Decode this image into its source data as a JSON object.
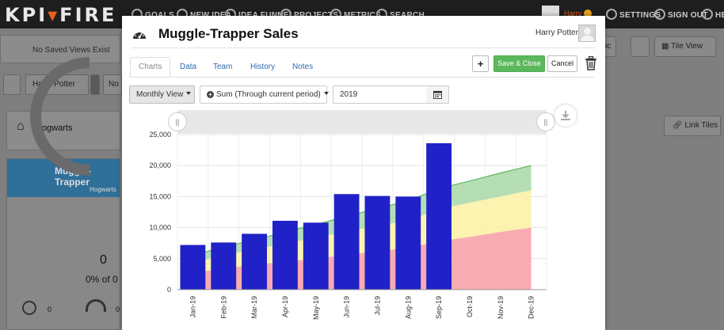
{
  "topnav": {
    "logo_a": "KPI",
    "logo_b": "FIRE",
    "items": [
      "GOALS",
      "NEW IDEA",
      "IDEA FUNNEL",
      "PROJECTS",
      "METRICS",
      "SEARCH"
    ],
    "user_name": "Harry",
    "right_items": [
      "SETTINGS",
      "SIGN OUT",
      "HEL"
    ]
  },
  "background": {
    "saved_views": "No Saved Views Exist",
    "filter_user": "Harry Potter",
    "filter_no": "No",
    "location": "Hogwarts",
    "tile_title": "Muggle-Trapper",
    "tile_sub": "Hogwarts",
    "tile_value": "0",
    "tile_pct": "0% of 0",
    "tile_foot_a": "0",
    "tile_foot_b": "0",
    "view_btn": "Tile View",
    "link_btn": "Link Tiles",
    "ric": "ric"
  },
  "modal": {
    "title": "Muggle-Trapper Sales",
    "user": "Harry Potter",
    "tabs": [
      "Charts",
      "Data",
      "Team",
      "History",
      "Notes"
    ],
    "active_tab": 0,
    "plus_label": "+",
    "save_label": "Save & Close",
    "cancel_label": "Cancel",
    "view_select": "Monthly View",
    "sum_select": "Sum (Through current period)",
    "year": "2019"
  },
  "chart_data": {
    "type": "bar",
    "categories": [
      "Jan-19",
      "Feb-19",
      "Mar-19",
      "Apr-19",
      "May-19",
      "Jun-19",
      "Jul-19",
      "Aug-19",
      "Sep-19",
      "Oct-19",
      "Nov-19",
      "Dec-19"
    ],
    "values": [
      7200,
      7600,
      9000,
      11100,
      10800,
      15400,
      15100,
      15000,
      23600,
      null,
      null,
      null
    ],
    "targets": {
      "red_top": [
        2700,
        3400,
        4000,
        4500,
        5000,
        5600,
        6200,
        6700,
        7800,
        8500,
        9300,
        10000
      ],
      "yellow_top": [
        4400,
        5500,
        6500,
        7400,
        8400,
        9300,
        10300,
        11100,
        13000,
        14000,
        15000,
        16000
      ],
      "green_top": [
        5500,
        6900,
        8000,
        9300,
        10500,
        11800,
        13100,
        14300,
        16300,
        17500,
        18800,
        20000
      ]
    },
    "colors": {
      "bar": "#2121c8",
      "red": "#f7a3a8",
      "yellow": "#fbf2a6",
      "green": "#a8d8a8",
      "green_line": "#5cb85c"
    },
    "yticks": [
      "0",
      "5,000",
      "10,000",
      "15,000",
      "20,000",
      "25,000"
    ],
    "ylim": [
      0,
      25000
    ]
  }
}
